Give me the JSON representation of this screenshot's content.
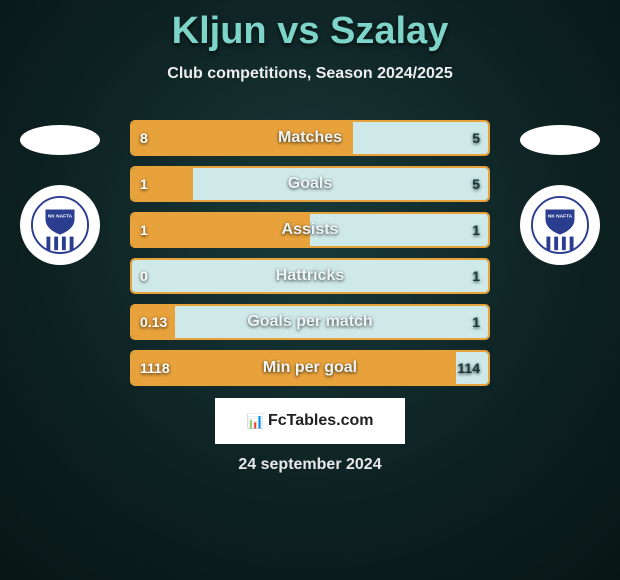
{
  "title": "Kljun vs Szalay",
  "subtitle": "Club competitions, Season 2024/2025",
  "date": "24 september 2024",
  "attribution_text": "FcTables.com",
  "colors": {
    "title_color": "#7dd4c8",
    "text_color": "#eeeeee",
    "bar_border": "#e8a23c",
    "fill_left": "#e8a23c",
    "fill_right": "#cfe8e8",
    "bar_bg": "#1c3a3c"
  },
  "badge": {
    "text": "NK NAFTA",
    "year": "1903",
    "shield_fill": "#2a3d8f",
    "stripe_color": "#2a3d8f"
  },
  "stats": [
    {
      "label": "Matches",
      "left_val": "8",
      "right_val": "5",
      "left_pct": 62,
      "right_pct": 38
    },
    {
      "label": "Goals",
      "left_val": "1",
      "right_val": "5",
      "left_pct": 17,
      "right_pct": 83
    },
    {
      "label": "Assists",
      "left_val": "1",
      "right_val": "1",
      "left_pct": 50,
      "right_pct": 50
    },
    {
      "label": "Hattricks",
      "left_val": "0",
      "right_val": "1",
      "left_pct": 0,
      "right_pct": 100
    },
    {
      "label": "Goals per match",
      "left_val": "0.13",
      "right_val": "1",
      "left_pct": 12,
      "right_pct": 88
    },
    {
      "label": "Min per goal",
      "left_val": "1118",
      "right_val": "114",
      "left_pct": 91,
      "right_pct": 9
    }
  ]
}
